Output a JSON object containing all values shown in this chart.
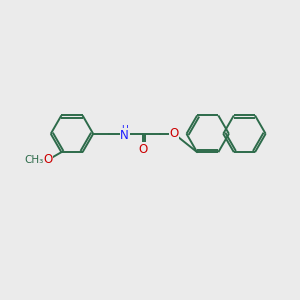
{
  "bg_color": "#ebebeb",
  "bond_color": "#2d6b4a",
  "bond_width": 1.4,
  "atom_colors": {
    "O": "#cc0000",
    "N": "#1a1aff",
    "C": "#2d6b4a"
  },
  "font_size": 8.5,
  "fig_width": 3.0,
  "fig_height": 3.0,
  "dpi": 100
}
